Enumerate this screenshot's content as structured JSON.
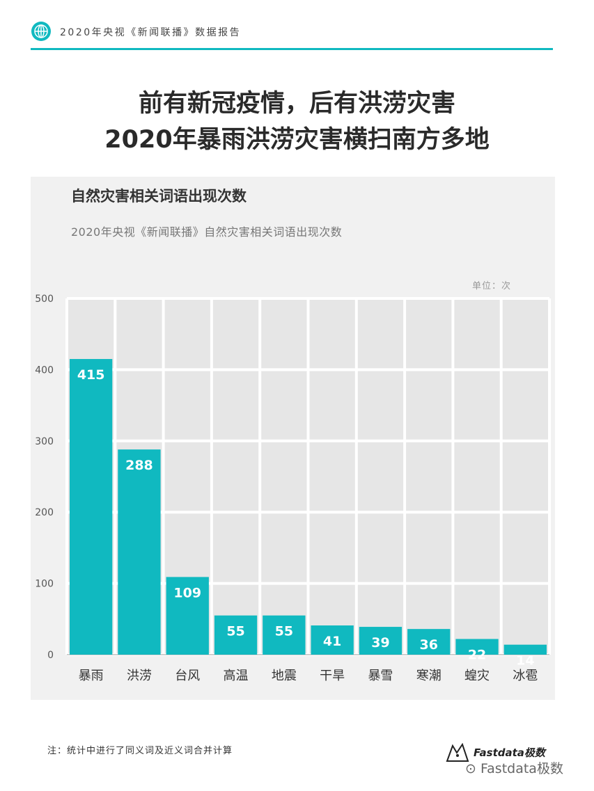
{
  "header": {
    "text": "2020年央视《新闻联播》数据报告",
    "icon": "globe-icon"
  },
  "title": {
    "line1": "前有新冠疫情，后有洪涝灾害",
    "line2": "2020年暴雨洪涝灾害横扫南方多地"
  },
  "chart_data": {
    "type": "bar",
    "title": "自然灾害相关词语出现次数",
    "subtitle": "2020年央视《新闻联播》自然灾害相关词语出现次数",
    "unit": "单位：次",
    "categories": [
      "暴雨",
      "洪涝",
      "台风",
      "高温",
      "地震",
      "干旱",
      "暴雪",
      "寒潮",
      "蝗灾",
      "冰雹"
    ],
    "values": [
      415,
      288,
      109,
      55,
      55,
      41,
      39,
      36,
      22,
      14
    ],
    "ylim": [
      0,
      500
    ],
    "yticks": [
      0,
      100,
      200,
      300,
      400,
      500
    ],
    "grid": true,
    "bar_color": "#10b9c0"
  },
  "footer": {
    "note": "注：统计中进行了同义词及近义词合并计算",
    "logo": "Fastdata极数",
    "watermark": "Fastdata极数"
  }
}
